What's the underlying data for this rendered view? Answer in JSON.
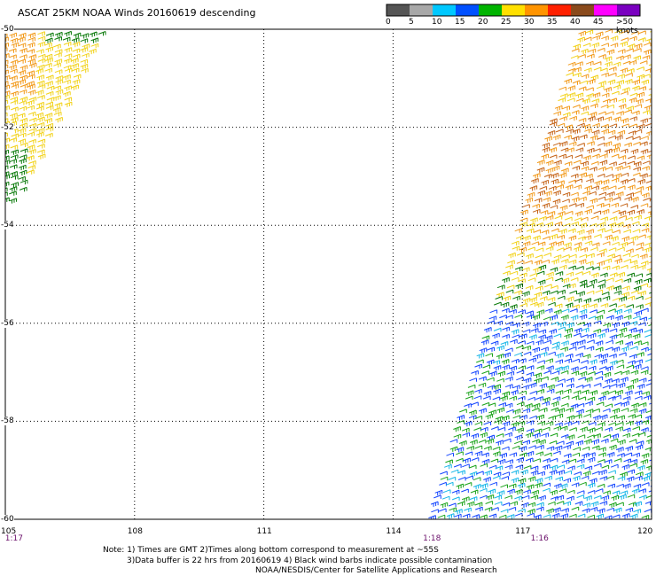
{
  "title": "ASCAT 25KM NOAA Winds 20160619 descending",
  "legend": {
    "bins": [
      {
        "label": "0",
        "color": "#555555"
      },
      {
        "label": "5",
        "color": "#a8a8a8"
      },
      {
        "label": "10",
        "color": "#00c8ff"
      },
      {
        "label": "15",
        "color": "#0050ff"
      },
      {
        "label": "20",
        "color": "#00b400"
      },
      {
        "label": "25",
        "color": "#ffe000"
      },
      {
        "label": "30",
        "color": "#ff9400"
      },
      {
        "label": "35",
        "color": "#ff2000"
      },
      {
        "label": "40",
        "color": "#8a4a1c"
      },
      {
        "label": "45",
        "color": "#ff00ff"
      },
      {
        "label": ">50 knots",
        "color": "#7a00c0"
      }
    ]
  },
  "map": {
    "lon_range": [
      105,
      120
    ],
    "lat_range": [
      -60,
      -50
    ],
    "lat_labels": [
      "-50",
      "-52",
      "-54",
      "-56",
      "-58",
      "-60"
    ],
    "lon_labels": [
      "105",
      "108",
      "111",
      "114",
      "117",
      "120"
    ],
    "time_labels": [
      {
        "text": "1:17",
        "lon": 105.2
      },
      {
        "text": "1:18",
        "lon": 114.9
      },
      {
        "text": "1:16",
        "lon": 117.4
      }
    ]
  },
  "notes": {
    "line1": "Note: 1) Times are GMT 2)Times along bottom correspond to measurement at ~55S",
    "line2": "3)Data buffer is 22 hrs from 20160619 4) Black wind barbs indicate possible contamination",
    "line3": "NOAA/NESDIS/Center for Satellite Applications and Research"
  }
}
